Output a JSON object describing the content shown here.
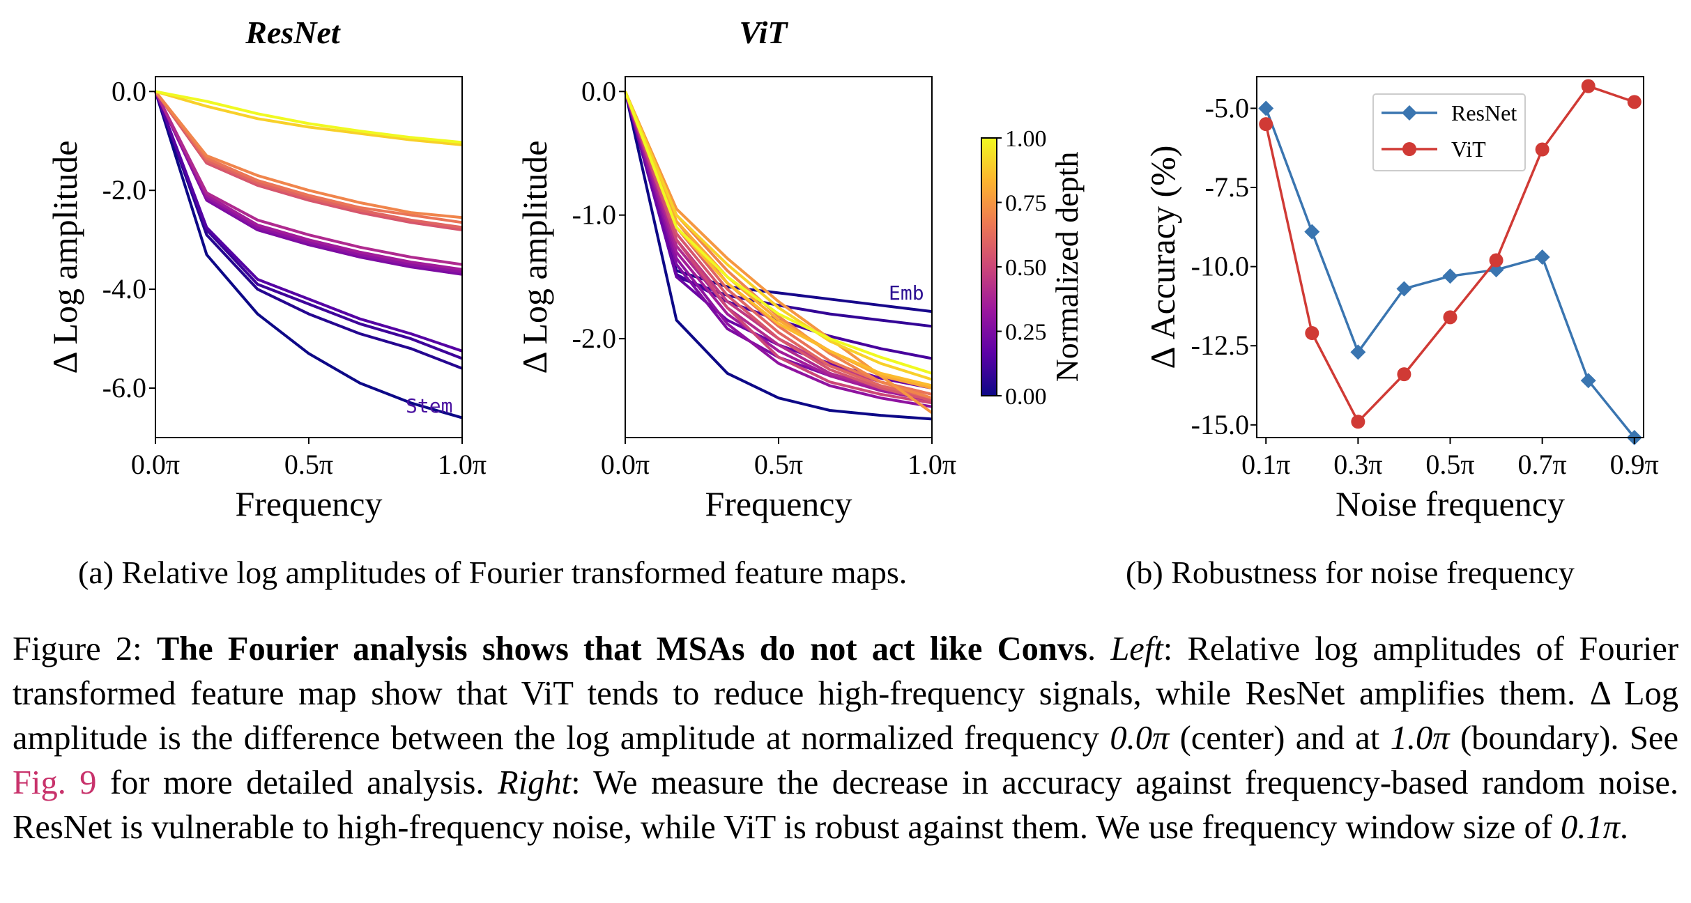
{
  "figure": {
    "subcaption_a": "(a) Relative log amplitudes of Fourier transformed feature maps.",
    "subcaption_b": "(b) Robustness for noise frequency",
    "colorbar": {
      "label": "Normalized depth",
      "ticks": [
        "1.00",
        "0.75",
        "0.50",
        "0.25",
        "0.00"
      ],
      "colors": [
        "#0d0887",
        "#5d01a6",
        "#9c179e",
        "#cc4778",
        "#ed7953",
        "#fdb42f",
        "#f0f921"
      ]
    }
  },
  "chart_data": [
    {
      "type": "line",
      "title": "ResNet",
      "xlabel": "Frequency",
      "ylabel": "Δ Log amplitude",
      "xlim": [
        0,
        1
      ],
      "ylim": [
        -7.0,
        0.3
      ],
      "xticks": [
        "0.0π",
        "0.5π",
        "1.0π"
      ],
      "yticks": [
        "0.0",
        "-2.0",
        "-4.0",
        "-6.0"
      ],
      "x": [
        0,
        0.167,
        0.333,
        0.5,
        0.667,
        0.833,
        1.0
      ],
      "annotation": "Stem",
      "series": [
        {
          "depth": 0.0,
          "values": [
            0,
            -3.3,
            -4.5,
            -5.3,
            -5.9,
            -6.3,
            -6.6
          ]
        },
        {
          "depth": 0.05,
          "values": [
            0,
            -2.9,
            -4.0,
            -4.5,
            -4.9,
            -5.2,
            -5.6
          ]
        },
        {
          "depth": 0.1,
          "values": [
            0,
            -2.8,
            -3.9,
            -4.3,
            -4.7,
            -5.0,
            -5.4
          ]
        },
        {
          "depth": 0.15,
          "values": [
            0,
            -2.75,
            -3.8,
            -4.2,
            -4.6,
            -4.9,
            -5.25
          ]
        },
        {
          "depth": 0.25,
          "values": [
            0,
            -2.2,
            -2.8,
            -3.1,
            -3.35,
            -3.55,
            -3.7
          ]
        },
        {
          "depth": 0.3,
          "values": [
            0,
            -2.15,
            -2.75,
            -3.05,
            -3.3,
            -3.5,
            -3.65
          ]
        },
        {
          "depth": 0.35,
          "values": [
            0,
            -2.1,
            -2.7,
            -3.0,
            -3.25,
            -3.45,
            -3.6
          ]
        },
        {
          "depth": 0.4,
          "values": [
            0,
            -2.05,
            -2.6,
            -2.9,
            -3.15,
            -3.35,
            -3.5
          ]
        },
        {
          "depth": 0.55,
          "values": [
            0,
            -1.45,
            -1.9,
            -2.2,
            -2.45,
            -2.65,
            -2.8
          ]
        },
        {
          "depth": 0.6,
          "values": [
            0,
            -1.4,
            -1.85,
            -2.15,
            -2.4,
            -2.6,
            -2.75
          ]
        },
        {
          "depth": 0.65,
          "values": [
            0,
            -1.35,
            -1.8,
            -2.1,
            -2.35,
            -2.5,
            -2.65
          ]
        },
        {
          "depth": 0.7,
          "values": [
            0,
            -1.3,
            -1.7,
            -2.0,
            -2.25,
            -2.45,
            -2.55
          ]
        },
        {
          "depth": 0.9,
          "values": [
            0,
            -0.3,
            -0.55,
            -0.72,
            -0.85,
            -0.98,
            -1.08
          ]
        },
        {
          "depth": 1.0,
          "values": [
            0,
            -0.2,
            -0.45,
            -0.65,
            -0.8,
            -0.93,
            -1.03
          ]
        }
      ]
    },
    {
      "type": "line",
      "title": "ViT",
      "xlabel": "Frequency",
      "ylabel": "Δ Log amplitude",
      "xlim": [
        0,
        1
      ],
      "ylim": [
        -2.8,
        0.12
      ],
      "xticks": [
        "0.0π",
        "0.5π",
        "1.0π"
      ],
      "yticks": [
        "0.0",
        "-1.0",
        "-2.0"
      ],
      "x": [
        0,
        0.167,
        0.333,
        0.5,
        0.667,
        0.833,
        1.0
      ],
      "annotation": "Emb",
      "series": [
        {
          "depth": 0.0,
          "values": [
            0,
            -1.85,
            -2.28,
            -2.48,
            -2.58,
            -2.62,
            -2.65
          ]
        },
        {
          "depth": 0.02,
          "values": [
            0,
            -1.45,
            -1.58,
            -1.63,
            -1.68,
            -1.73,
            -1.78
          ]
        },
        {
          "depth": 0.08,
          "values": [
            0,
            -1.5,
            -1.65,
            -1.73,
            -1.8,
            -1.85,
            -1.9
          ]
        },
        {
          "depth": 0.12,
          "values": [
            0,
            -1.48,
            -1.7,
            -1.85,
            -1.98,
            -2.08,
            -2.16
          ]
        },
        {
          "depth": 0.2,
          "values": [
            0,
            -1.5,
            -1.85,
            -2.05,
            -2.2,
            -2.32,
            -2.4
          ]
        },
        {
          "depth": 0.25,
          "values": [
            0,
            -1.4,
            -1.92,
            -2.15,
            -2.3,
            -2.42,
            -2.5
          ]
        },
        {
          "depth": 0.3,
          "values": [
            0,
            -1.35,
            -1.88,
            -2.2,
            -2.38,
            -2.48,
            -2.55
          ]
        },
        {
          "depth": 0.35,
          "values": [
            0,
            -1.3,
            -1.8,
            -2.1,
            -2.3,
            -2.42,
            -2.5
          ]
        },
        {
          "depth": 0.4,
          "values": [
            0,
            -1.25,
            -1.75,
            -2.05,
            -2.28,
            -2.4,
            -2.48
          ]
        },
        {
          "depth": 0.45,
          "values": [
            0,
            -1.2,
            -1.7,
            -2.0,
            -2.22,
            -2.35,
            -2.45
          ]
        },
        {
          "depth": 0.5,
          "values": [
            0,
            -1.2,
            -1.75,
            -2.15,
            -2.35,
            -2.45,
            -2.52
          ]
        },
        {
          "depth": 0.55,
          "values": [
            0,
            -1.15,
            -1.65,
            -2.0,
            -2.25,
            -2.4,
            -2.5
          ]
        },
        {
          "depth": 0.6,
          "values": [
            0,
            -1.1,
            -1.6,
            -1.95,
            -2.22,
            -2.38,
            -2.48
          ]
        },
        {
          "depth": 0.65,
          "values": [
            0,
            -1.05,
            -1.55,
            -1.9,
            -2.18,
            -2.35,
            -2.45
          ]
        },
        {
          "depth": 0.7,
          "values": [
            0,
            -1.0,
            -1.45,
            -1.82,
            -2.12,
            -2.35,
            -2.48
          ]
        },
        {
          "depth": 0.75,
          "values": [
            0,
            -0.95,
            -1.35,
            -1.7,
            -2.0,
            -2.3,
            -2.6
          ]
        },
        {
          "depth": 0.8,
          "values": [
            0,
            -1.05,
            -1.5,
            -1.85,
            -2.1,
            -2.3,
            -2.4
          ]
        },
        {
          "depth": 0.85,
          "values": [
            0,
            -1.1,
            -1.55,
            -1.88,
            -2.1,
            -2.28,
            -2.38
          ]
        },
        {
          "depth": 0.9,
          "values": [
            0,
            -1.0,
            -1.4,
            -1.75,
            -2.02,
            -2.2,
            -2.33
          ]
        },
        {
          "depth": 1.0,
          "values": [
            0,
            -1.1,
            -1.5,
            -1.8,
            -2.0,
            -2.15,
            -2.28
          ]
        }
      ]
    },
    {
      "type": "line",
      "title": "",
      "xlabel": "Noise frequency",
      "ylabel": "Δ Accuracy (%)",
      "xlim": [
        0.08,
        0.92
      ],
      "ylim": [
        -15.4,
        -4.0
      ],
      "xticks": [
        "0.1π",
        "0.3π",
        "0.5π",
        "0.7π",
        "0.9π"
      ],
      "yticks": [
        "-5.0",
        "-7.5",
        "-10.0",
        "-12.5",
        "-15.0"
      ],
      "x": [
        0.1,
        0.2,
        0.3,
        0.4,
        0.5,
        0.6,
        0.7,
        0.8,
        0.9
      ],
      "series": [
        {
          "name": "ResNet",
          "color": "#3a75b0",
          "marker": "diamond",
          "values": [
            -5.0,
            -8.9,
            -12.7,
            -10.7,
            -10.3,
            -10.1,
            -9.7,
            -13.6,
            -15.4
          ]
        },
        {
          "name": "ViT",
          "color": "#d03a35",
          "marker": "circle",
          "values": [
            -5.5,
            -12.1,
            -14.9,
            -13.4,
            -11.6,
            -9.8,
            -6.3,
            -4.3,
            -4.8
          ]
        }
      ]
    }
  ],
  "caption": {
    "label": "Figure 2: ",
    "bold_title": "The Fourier analysis shows that MSAs do not act like Convs",
    "after_title": ". ",
    "left_label": "Left",
    "text1": ": Relative log amplitudes of Fourier transformed feature map show that ViT tends to reduce high-frequency signals, while ResNet amplifies them. Δ Log amplitude is the difference between the log amplitude at normalized frequency ",
    "freq_center": "0.0π",
    "text2": " (center) and at ",
    "freq_boundary": "1.0π",
    "text3": " (boundary). See ",
    "link": "Fig. 9",
    "text4": " for more detailed analysis. ",
    "right_label": "Right",
    "text5": ": We measure the decrease in accuracy against frequency-based random noise. ResNet is vulnerable to high-frequency noise, while ViT is robust against them. We use frequency window size of ",
    "window": "0.1π",
    "text6": "."
  }
}
